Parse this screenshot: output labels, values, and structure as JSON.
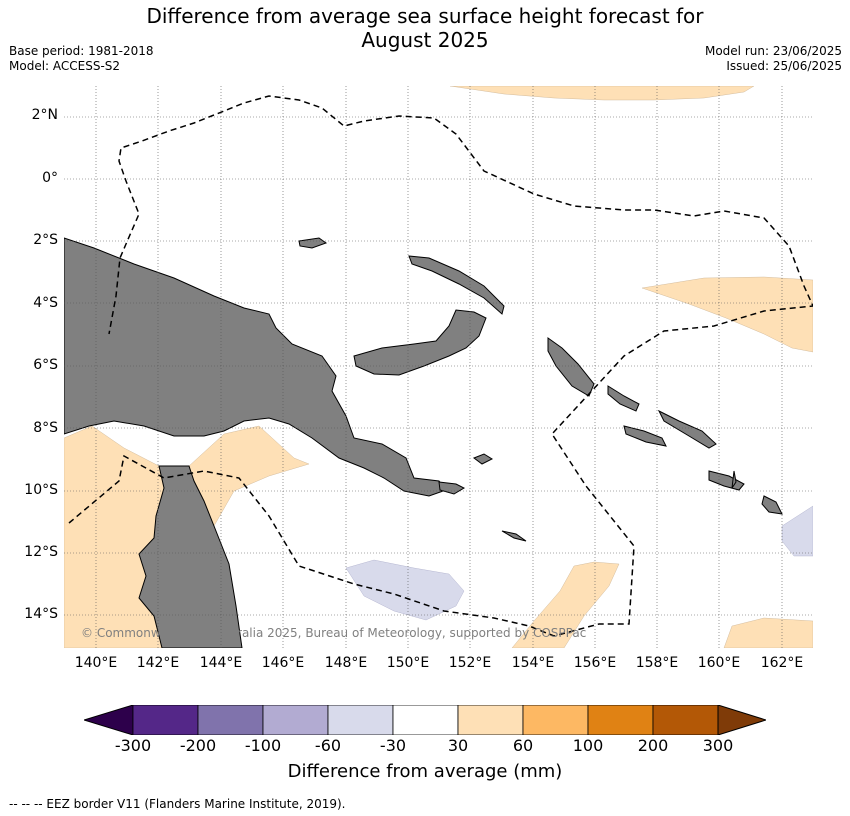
{
  "title_line1": "Difference from average sea surface height forecast for",
  "title_line2": "August 2025",
  "base_period": "Base period: 1981-2018",
  "model": "Model: ACCESS-S2",
  "model_run": "Model run: 23/06/2025",
  "issued": "Issued: 25/06/2025",
  "lat_labels": [
    "2°N",
    "0°",
    "2°S",
    "4°S",
    "6°S",
    "8°S",
    "10°S",
    "12°S",
    "14°S"
  ],
  "lon_labels": [
    "140°E",
    "142°E",
    "144°E",
    "146°E",
    "148°E",
    "150°E",
    "152°E",
    "154°E",
    "156°E",
    "158°E",
    "160°E",
    "162°E"
  ],
  "copyright": "© Commonwealth of Australia 2025, Bureau of Meteorology, supported by COSPPac",
  "colorbar": {
    "label": "Difference from average (mm)",
    "ticks": [
      "-300",
      "-200",
      "-100",
      "-60",
      "-30",
      "30",
      "60",
      "100",
      "200",
      "300"
    ],
    "colors": [
      "#2d004b",
      "#542788",
      "#8073ac",
      "#b2abd2",
      "#d8daeb",
      "#ffffff",
      "#fee0b6",
      "#fdb863",
      "#e08214",
      "#b35806",
      "#7f3b08"
    ]
  },
  "land_color": "#808080",
  "footnote": "--  --  -- EEZ border V11 (Flanders Marine Institute, 2019)."
}
